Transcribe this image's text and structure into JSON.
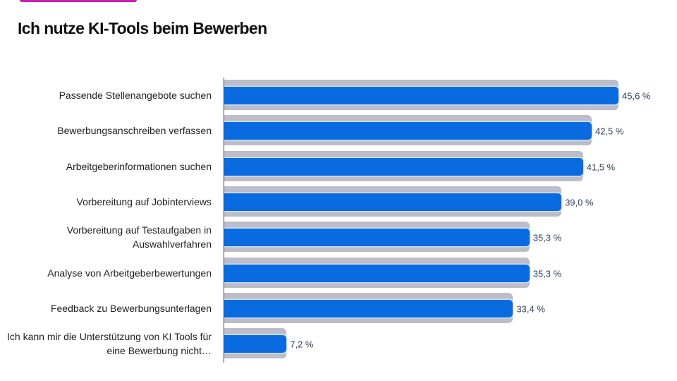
{
  "colors": {
    "accent": "#c81fb4",
    "bar": "#0a6be0",
    "background_bar": "#bcbdc9"
  },
  "chart_data": {
    "type": "bar",
    "orientation": "horizontal",
    "title": "Ich nutze KI-Tools beim Bewerben",
    "categories": [
      "Passende Stellenangebote suchen",
      "Bewerbungsanschreiben verfassen",
      "Arbeitgeberinformationen suchen",
      "Vorbereitung auf Jobinterviews",
      "Vorbereitung auf Testaufgaben in Auswahlverfahren",
      "Analyse von Arbeitgeberbewertungen",
      "Feedback zu Bewerbungsunterlagen",
      "Ich kann mir die Unterstützung von KI Tools für eine Bewerbung nicht…"
    ],
    "values": [
      45.6,
      42.5,
      41.5,
      39.0,
      35.3,
      35.3,
      33.4,
      7.2
    ],
    "value_labels": [
      "45,6 %",
      "42,5 %",
      "41,5 %",
      "39,0 %",
      "35,3 %",
      "35,3 %",
      "33,4 %",
      "7,2 %"
    ],
    "xlabel": "",
    "ylabel": "",
    "xlim": [
      0,
      45.6
    ],
    "grid": false
  }
}
